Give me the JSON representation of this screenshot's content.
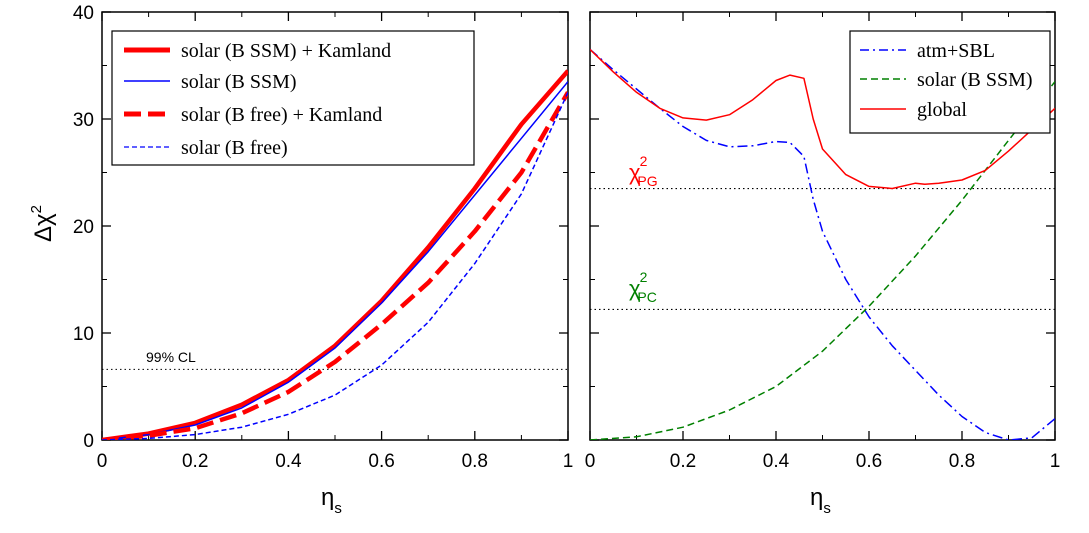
{
  "chart_data": [
    {
      "type": "line",
      "panel": "left",
      "xlabel": "η_s",
      "ylabel": "Δχ^2",
      "xlim": [
        0,
        1
      ],
      "ylim": [
        0,
        40
      ],
      "xticks": [
        "0",
        "0.2",
        "0.4",
        "0.6",
        "0.8",
        "1"
      ],
      "yticks": [
        "0",
        "10",
        "20",
        "30",
        "40"
      ],
      "legend_position": "top-left",
      "hlines": [
        {
          "y": 6.6,
          "label": "99% CL"
        }
      ],
      "series": [
        {
          "name": "solar (B SSM) + Kamland",
          "color": "#ff0000",
          "style": "solid",
          "width": "thick",
          "x": [
            0,
            0.1,
            0.2,
            0.3,
            0.4,
            0.5,
            0.6,
            0.7,
            0.8,
            0.9,
            1.0
          ],
          "y": [
            0,
            0.6,
            1.6,
            3.3,
            5.6,
            8.8,
            13.0,
            18.0,
            23.5,
            29.5,
            34.5
          ]
        },
        {
          "name": "solar (B SSM)",
          "color": "#0000ff",
          "style": "solid",
          "width": "thin",
          "x": [
            0,
            0.1,
            0.2,
            0.3,
            0.4,
            0.5,
            0.6,
            0.7,
            0.8,
            0.9,
            1.0
          ],
          "y": [
            0,
            0.5,
            1.4,
            3.0,
            5.4,
            8.6,
            12.8,
            17.6,
            22.9,
            28.2,
            33.5
          ]
        },
        {
          "name": "solar (B free) + Kamland",
          "color": "#ff0000",
          "style": "dashed",
          "width": "thick",
          "x": [
            0,
            0.1,
            0.2,
            0.3,
            0.4,
            0.5,
            0.6,
            0.7,
            0.8,
            0.9,
            1.0
          ],
          "y": [
            0,
            0.4,
            1.1,
            2.5,
            4.5,
            7.3,
            10.8,
            14.7,
            19.5,
            25.0,
            32.5
          ]
        },
        {
          "name": "solar (B free)",
          "color": "#0000ff",
          "style": "dashed",
          "width": "thin",
          "x": [
            0,
            0.1,
            0.2,
            0.3,
            0.4,
            0.5,
            0.6,
            0.7,
            0.8,
            0.9,
            1.0
          ],
          "y": [
            0,
            0.15,
            0.5,
            1.2,
            2.4,
            4.2,
            7.0,
            11.0,
            16.5,
            23.0,
            32.5
          ]
        }
      ]
    },
    {
      "type": "line",
      "panel": "right",
      "xlabel": "η_s",
      "ylabel": "",
      "xlim": [
        0,
        1
      ],
      "ylim": [
        0,
        40
      ],
      "xticks": [
        "0",
        "0.2",
        "0.4",
        "0.6",
        "0.8",
        "1"
      ],
      "legend_position": "top-right",
      "hlines": [
        {
          "y": 23.5,
          "label": "χ^2_PG",
          "color": "#ff0000"
        },
        {
          "y": 12.2,
          "label": "χ^2_PC",
          "color": "#008000"
        }
      ],
      "series": [
        {
          "name": "atm+SBL",
          "color": "#0000ff",
          "style": "dashdot",
          "x": [
            0,
            0.05,
            0.1,
            0.15,
            0.2,
            0.25,
            0.3,
            0.35,
            0.4,
            0.43,
            0.46,
            0.48,
            0.5,
            0.55,
            0.6,
            0.65,
            0.7,
            0.75,
            0.8,
            0.85,
            0.9,
            0.95,
            1.0
          ],
          "y": [
            36.5,
            34.6,
            32.8,
            31.0,
            29.3,
            28.0,
            27.4,
            27.5,
            27.9,
            27.8,
            26.5,
            22.5,
            19.5,
            15.0,
            11.5,
            8.8,
            6.5,
            4.2,
            2.2,
            0.7,
            0.0,
            0.2,
            2.0
          ]
        },
        {
          "name": "solar (B SSM)",
          "color": "#008000",
          "style": "dashed",
          "x": [
            0,
            0.1,
            0.2,
            0.3,
            0.4,
            0.5,
            0.6,
            0.7,
            0.8,
            0.9,
            1.0
          ],
          "y": [
            0,
            0.3,
            1.2,
            2.8,
            5.0,
            8.3,
            12.5,
            17.2,
            22.4,
            28.0,
            33.5
          ]
        },
        {
          "name": "global",
          "color": "#ff0000",
          "style": "solid",
          "x": [
            0,
            0.05,
            0.1,
            0.15,
            0.2,
            0.25,
            0.3,
            0.35,
            0.4,
            0.43,
            0.46,
            0.48,
            0.5,
            0.55,
            0.6,
            0.65,
            0.7,
            0.72,
            0.75,
            0.8,
            0.85,
            0.9,
            0.95,
            1.0
          ],
          "y": [
            36.5,
            34.4,
            32.5,
            31.0,
            30.1,
            29.9,
            30.4,
            31.8,
            33.6,
            34.1,
            33.8,
            30.0,
            27.2,
            24.8,
            23.7,
            23.5,
            24.0,
            23.9,
            24.0,
            24.3,
            25.2,
            27.0,
            29.0,
            31.0
          ]
        }
      ]
    }
  ]
}
